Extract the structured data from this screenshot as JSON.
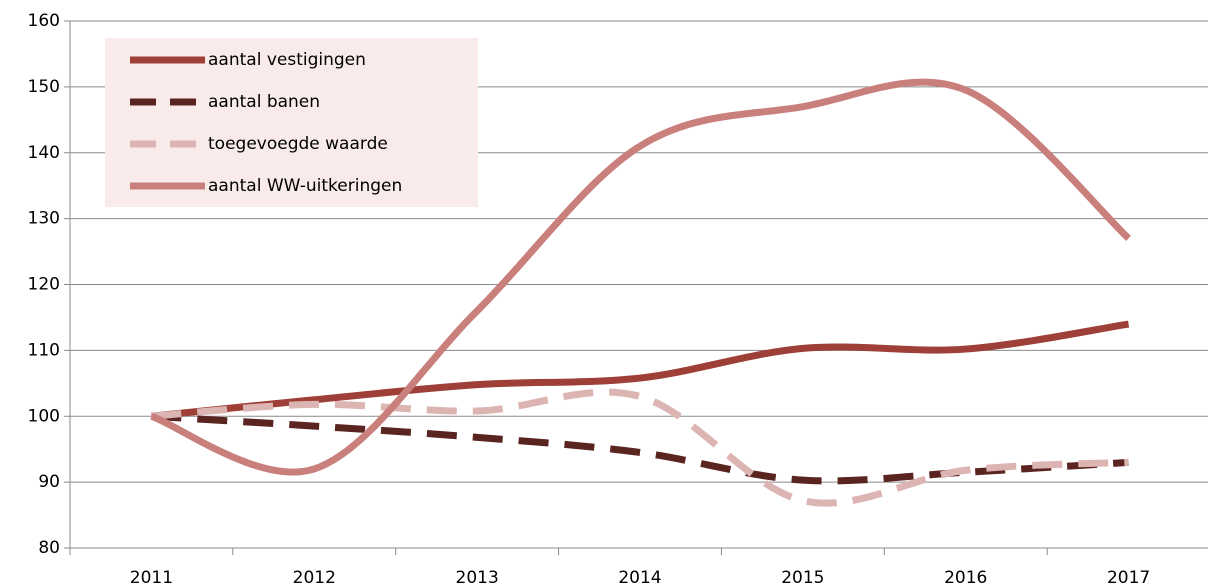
{
  "chart_data": {
    "type": "line",
    "categories": [
      "2011",
      "2012",
      "2013",
      "2014",
      "2015",
      "2016",
      "2017"
    ],
    "series": [
      {
        "name": "aantal vestigingen",
        "color": "#9e3f38",
        "dash": false,
        "values": [
          100,
          102.5,
          104.8,
          105.8,
          110.3,
          110.2,
          114
        ]
      },
      {
        "name": "aantal banen",
        "color": "#5a2420",
        "dash": true,
        "values": [
          100,
          98.5,
          96.8,
          94.5,
          90.3,
          91.5,
          93
        ]
      },
      {
        "name": "toegevoegde waarde",
        "color": "#dcb4b2",
        "dash": true,
        "values": [
          100,
          101.8,
          100.8,
          103,
          87.2,
          91.8,
          93
        ]
      },
      {
        "name": "aantal WW-uitkeringen",
        "color": "#c97f7b",
        "dash": false,
        "values": [
          100,
          92,
          116,
          141,
          147,
          149.5,
          127
        ]
      }
    ],
    "ylim": [
      80,
      160
    ],
    "yticks": [
      80,
      90,
      100,
      110,
      120,
      130,
      140,
      150,
      160
    ],
    "grid": true,
    "legend": "upper left"
  }
}
